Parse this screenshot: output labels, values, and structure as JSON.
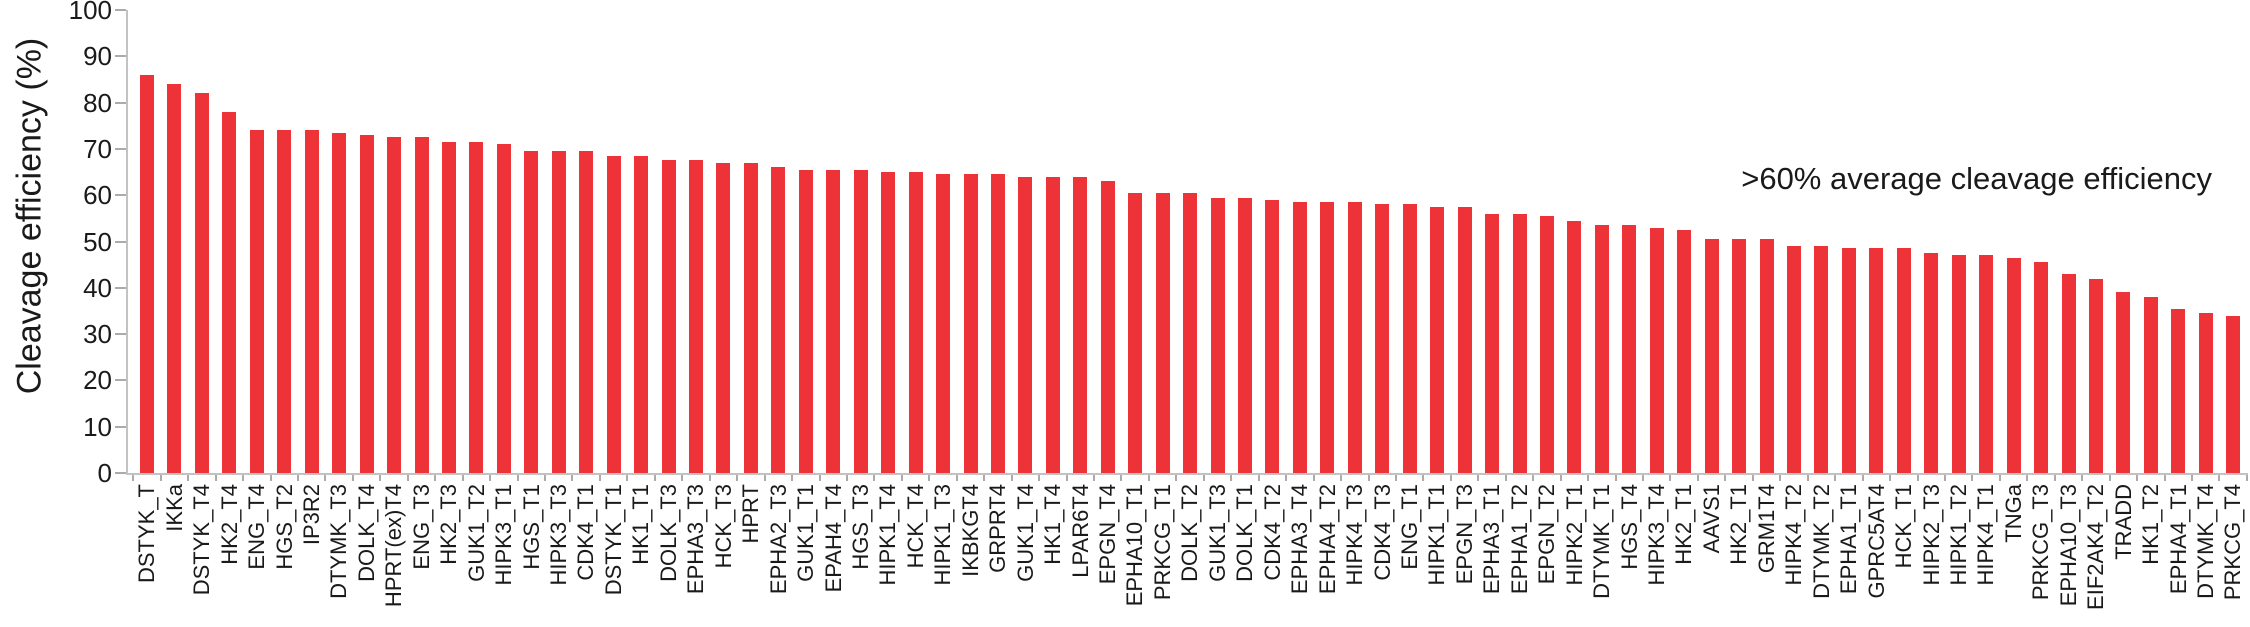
{
  "chart_data": {
    "type": "bar",
    "title": "",
    "ylabel": "Cleavage efficiency (%)",
    "xlabel": "",
    "ylim": [
      0,
      100
    ],
    "yticks": [
      0,
      10,
      20,
      30,
      40,
      50,
      60,
      70,
      80,
      90,
      100
    ],
    "grid": false,
    "legend_position": "none",
    "bar_color": "#ED3338",
    "axis_color": "#C2C2C2",
    "text_color": "#1A1A1A",
    "annotation": ">60% average cleavage efficiency",
    "categories": [
      "DSTYK_T",
      "IKKa",
      "DSTYK_T4",
      "HK2_T4",
      "ENG_T4",
      "HGS_T2",
      "IP3R2",
      "DTYMK_T3",
      "DOLK_T4",
      "HPRT(ex)T4",
      "ENG_T3",
      "HK2_T3",
      "GUK1_T2",
      "HIPK3_T1",
      "HGS_T1",
      "HIPK3_T3",
      "CDK4_T1",
      "DSTYK_T1",
      "HK1_T1",
      "DOLK_T3",
      "EPHA3_T3",
      "HCK_T3",
      "HPRT",
      "EPHA2_T3",
      "GUK1_T1",
      "EPAH4_T4",
      "HGS_T3",
      "HIPK1_T4",
      "HCK_T4",
      "HIPK1_T3",
      "IKBKGT4",
      "GRPRT4",
      "GUK1_T4",
      "HK1_T4",
      "LPAR6T4",
      "EPGN_T4",
      "EPHA10_T1",
      "PRKCG_T1",
      "DOLK_T2",
      "GUK1_T3",
      "DOLK_T1",
      "CDK4_T2",
      "EPHA3_T4",
      "EPHA4_T2",
      "HIPK4_T3",
      "CDK4_T3",
      "ENG_T1",
      "HIPK1_T1",
      "EPGN_T3",
      "EPHA3_T1",
      "EPHA1_T2",
      "EPGN_T2",
      "HIPK2_T1",
      "DTYMK_T1",
      "HGS_T4",
      "HIPK3_T4",
      "HK2_T1",
      "AAVS1",
      "HK2_T1",
      "GRM1T4",
      "HIPK4_T2",
      "DTYMK_T2",
      "EPHA1_T1",
      "GPRC5AT4",
      "HCK_T1",
      "HIPK2_T3",
      "HIPK1_T2",
      "HIPK4_T1",
      "TNGa",
      "PRKCG_T3",
      "EPHA10_T3",
      "EIF2AK4_T2",
      "TRADD",
      "HK1_T2",
      "EPHA4_T1",
      "DTYMK_T4",
      "PRKCG_T4"
    ],
    "values": [
      86,
      84,
      82,
      78,
      74,
      74,
      74,
      73.5,
      73,
      72.5,
      72.5,
      71.5,
      71.5,
      71,
      69.5,
      69.5,
      69.5,
      68.5,
      68.5,
      67.5,
      67.5,
      67,
      67,
      66,
      65.5,
      65.5,
      65.5,
      65,
      65,
      64.5,
      64.5,
      64.5,
      64,
      64,
      64,
      63,
      60.5,
      60.5,
      60.5,
      59.5,
      59.5,
      59,
      58.5,
      58.5,
      58.5,
      58,
      58,
      57.5,
      57.5,
      56,
      56,
      55.5,
      54.5,
      53.5,
      53.5,
      53,
      52.5,
      50.5,
      50.5,
      50.5,
      49,
      49,
      48.5,
      48.5,
      48.5,
      47.5,
      47,
      47,
      46.5,
      45.5,
      43,
      42,
      39,
      38,
      35.5,
      34.5,
      34
    ]
  }
}
